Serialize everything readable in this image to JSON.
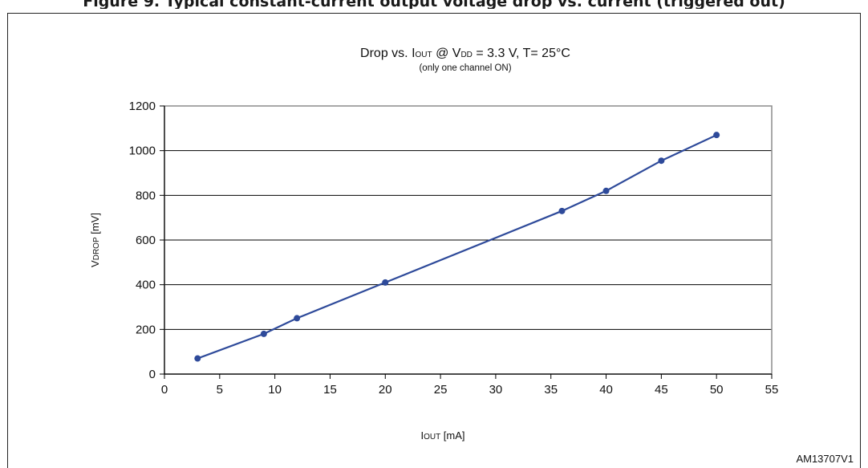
{
  "caption": "Figure 9. Typical constant-current output voltage drop vs. current (triggered out)",
  "chart_data": {
    "type": "line",
    "title_parts": {
      "pre": "Drop vs. I",
      "sub1": "OUT",
      "mid": " @ V",
      "sub2": "DD",
      "post": " = 3.3 V, T= 25°C"
    },
    "subtitle": "(only one channel ON)",
    "xlabel_parts": {
      "main": "I",
      "sub": "OUT",
      "unit": " [mA]"
    },
    "ylabel_parts": {
      "main": "V",
      "sub": "DROP",
      "unit": " [mV]"
    },
    "xlim": [
      0,
      55
    ],
    "ylim": [
      0,
      1200
    ],
    "xticks": [
      0,
      5,
      10,
      15,
      20,
      25,
      30,
      35,
      40,
      45,
      50,
      55
    ],
    "yticks": [
      0,
      200,
      400,
      600,
      800,
      1000,
      1200
    ],
    "grid": "horizontal",
    "series": [
      {
        "color": "#2e4a9a",
        "x": [
          3,
          9,
          12,
          20,
          36,
          40,
          45,
          50
        ],
        "y": [
          70,
          180,
          250,
          410,
          730,
          820,
          955,
          1070
        ]
      }
    ],
    "reference_code": "AM13707V1"
  }
}
